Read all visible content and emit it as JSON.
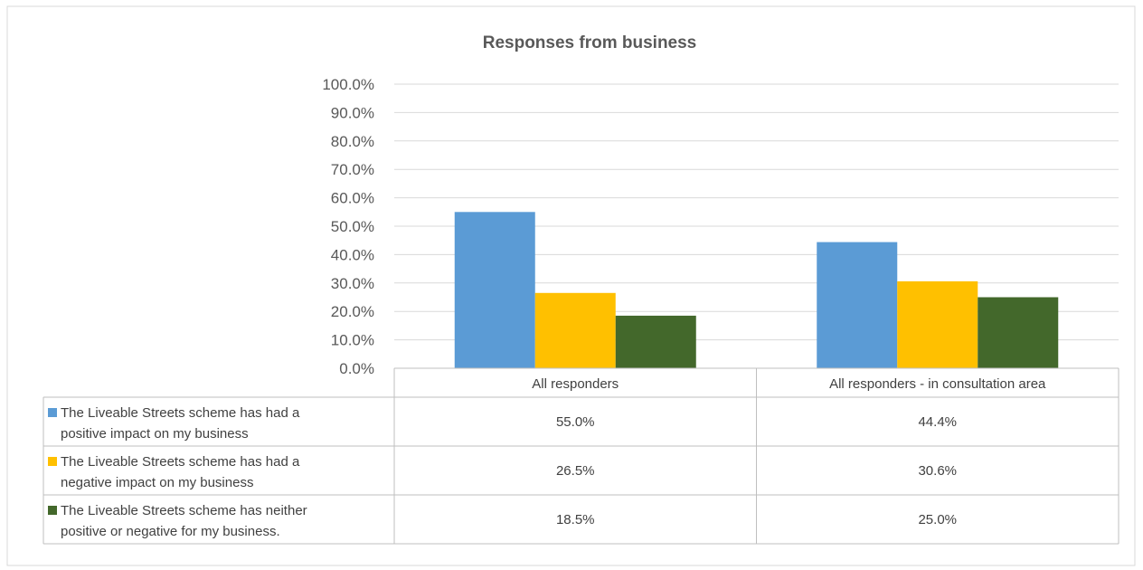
{
  "chart_data": {
    "type": "bar",
    "title": "Responses from business",
    "categories": [
      "All responders",
      "All responders - in consultation area"
    ],
    "series": [
      {
        "name": "The Liveable Streets scheme has had a positive impact on my business",
        "name_lines": [
          "The Liveable Streets scheme has had a",
          "positive impact on my business"
        ],
        "color": "#5B9BD5",
        "values": [
          55.0,
          44.4
        ],
        "labels": [
          "55.0%",
          "44.4%"
        ]
      },
      {
        "name": "The Liveable Streets scheme has had a negative impact on my business",
        "name_lines": [
          "The Liveable Streets scheme has had a",
          "negative impact on my business"
        ],
        "color": "#FFC000",
        "values": [
          26.5,
          30.6
        ],
        "labels": [
          "26.5%",
          "30.6%"
        ]
      },
      {
        "name": "The Liveable Streets scheme has neither positive or negative for my business.",
        "name_lines": [
          "The Liveable Streets scheme has neither",
          "positive or negative for my business."
        ],
        "color": "#43682B",
        "values": [
          18.5,
          25.0
        ],
        "labels": [
          "18.5%",
          "25.0%"
        ]
      }
    ],
    "ylim": [
      0,
      100
    ],
    "yticks": [
      "0.0%",
      "10.0%",
      "20.0%",
      "30.0%",
      "40.0%",
      "50.0%",
      "60.0%",
      "70.0%",
      "80.0%",
      "90.0%",
      "100.0%"
    ],
    "grid": true,
    "legend": "data table below chart"
  }
}
